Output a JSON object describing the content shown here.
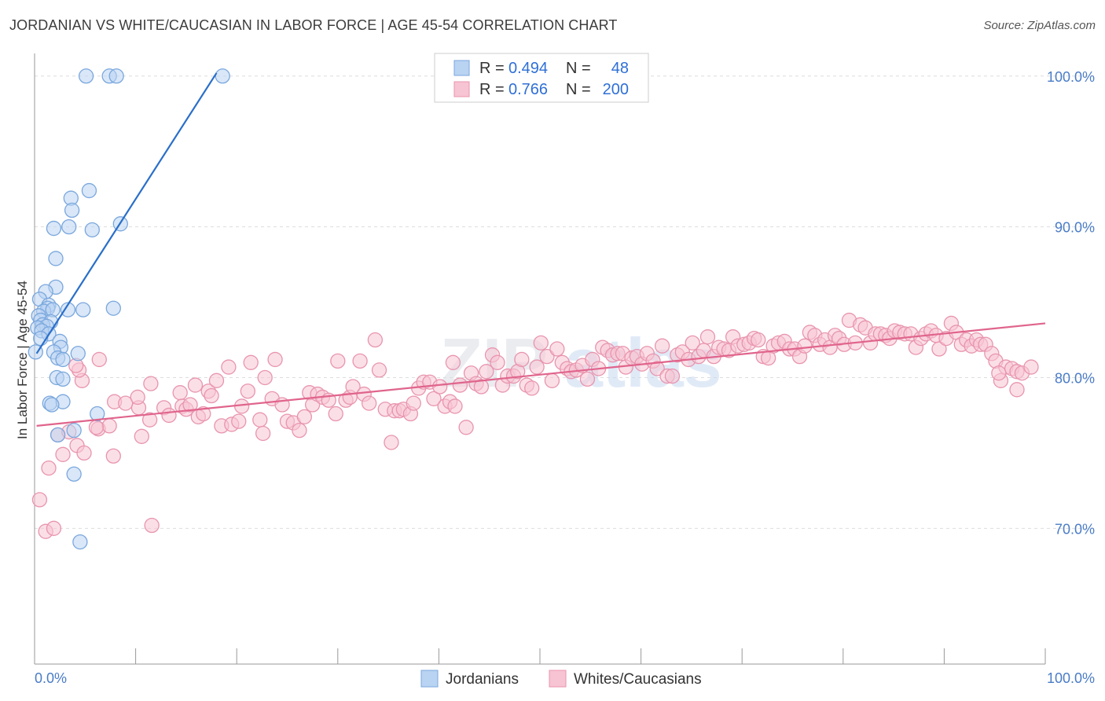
{
  "header": {
    "title": "JORDANIAN VS WHITE/CAUCASIAN IN LABOR FORCE | AGE 45-54 CORRELATION CHART",
    "source": "Source: ZipAtlas.com"
  },
  "watermark": {
    "part1": "ZIP",
    "part2": "atlas"
  },
  "colors": {
    "blue_fill": "#b9d3f2",
    "blue_stroke": "#7aa7dd",
    "blue_line": "#2a6fc9",
    "pink_fill": "#f7c4d3",
    "pink_stroke": "#e895ae",
    "pink_line": "#e0648c",
    "tick": "#4a7cc7",
    "grid": "#dddddd"
  },
  "chart_data": {
    "type": "scatter",
    "title": "JORDANIAN VS WHITE/CAUCASIAN IN LABOR FORCE | AGE 45-54 CORRELATION CHART",
    "xlabel": "",
    "ylabel": "In Labor Force | Age 45-54",
    "xlim": [
      0,
      100
    ],
    "ylim": [
      61,
      101.5
    ],
    "x_tick_labels": [
      "0.0%",
      "100.0%"
    ],
    "y_ticks": [
      70,
      80,
      90,
      100
    ],
    "y_tick_labels": [
      "70.0%",
      "80.0%",
      "90.0%",
      "100.0%"
    ],
    "legend": [
      {
        "r_label": "R = ",
        "r_value": "0.494",
        "n_label": "N = ",
        "n_value": "48"
      },
      {
        "r_label": "R = ",
        "r_value": "0.766",
        "n_label": "N = ",
        "n_value": "200"
      }
    ],
    "series": [
      {
        "name": "Jordanians",
        "trend": {
          "x": [
            0.2,
            18.0
          ],
          "y": [
            81.6,
            100.2
          ]
        },
        "points": [
          [
            5.1,
            100
          ],
          [
            7.4,
            100
          ],
          [
            8.1,
            100
          ],
          [
            18.6,
            100
          ],
          [
            5.4,
            92.4
          ],
          [
            3.6,
            91.9
          ],
          [
            3.7,
            91.1
          ],
          [
            8.5,
            90.2
          ],
          [
            1.9,
            89.9
          ],
          [
            3.4,
            90
          ],
          [
            5.7,
            89.8
          ],
          [
            2.1,
            87.9
          ],
          [
            2.1,
            86
          ],
          [
            1.1,
            85.7
          ],
          [
            0.5,
            85.2
          ],
          [
            1.4,
            84.8
          ],
          [
            1.3,
            84.6
          ],
          [
            0.9,
            84.4
          ],
          [
            4.8,
            84.5
          ],
          [
            7.8,
            84.6
          ],
          [
            3.3,
            84.5
          ],
          [
            1.8,
            84.5
          ],
          [
            0.4,
            84.1
          ],
          [
            0.6,
            83.8
          ],
          [
            1.6,
            83.7
          ],
          [
            0.8,
            83.5
          ],
          [
            1.2,
            83.4
          ],
          [
            0.3,
            83.3
          ],
          [
            0.7,
            83.1
          ],
          [
            1.4,
            82.9
          ],
          [
            0.6,
            82.6
          ],
          [
            2.5,
            82.4
          ],
          [
            2.6,
            82
          ],
          [
            1.9,
            81.7
          ],
          [
            4.3,
            81.6
          ],
          [
            2.3,
            81.3
          ],
          [
            2.8,
            81.2
          ],
          [
            0.1,
            81.7
          ],
          [
            2.2,
            80
          ],
          [
            2.8,
            79.9
          ],
          [
            2.8,
            78.4
          ],
          [
            1.5,
            78.3
          ],
          [
            1.7,
            78.2
          ],
          [
            6.2,
            77.6
          ],
          [
            2.3,
            76.2
          ],
          [
            3.9,
            76.5
          ],
          [
            3.9,
            73.6
          ],
          [
            4.5,
            69.1
          ]
        ]
      },
      {
        "name": "Whites/Caucasians",
        "trend": {
          "x": [
            0.2,
            100
          ],
          "y": [
            76.8,
            83.6
          ]
        },
        "points": [
          [
            0.5,
            71.9
          ],
          [
            1.1,
            69.8
          ],
          [
            1.9,
            70
          ],
          [
            1.4,
            74
          ],
          [
            2.8,
            74.9
          ],
          [
            2.3,
            76.2
          ],
          [
            3.4,
            76.4
          ],
          [
            4.2,
            75.5
          ],
          [
            4.9,
            75
          ],
          [
            6.3,
            76.6
          ],
          [
            7.4,
            76.8
          ],
          [
            7.8,
            74.8
          ],
          [
            6.1,
            76.7
          ],
          [
            11.6,
            70.2
          ],
          [
            4.7,
            79.8
          ],
          [
            4.4,
            80.5
          ],
          [
            4.1,
            80.8
          ],
          [
            6.4,
            81.2
          ],
          [
            7.9,
            78.4
          ],
          [
            9,
            78.3
          ],
          [
            10.3,
            78
          ],
          [
            10.2,
            78.7
          ],
          [
            10.6,
            76.1
          ],
          [
            11.4,
            77.2
          ],
          [
            11.5,
            79.6
          ],
          [
            12.8,
            78
          ],
          [
            13.3,
            77.5
          ],
          [
            14.4,
            79
          ],
          [
            14.6,
            78.1
          ],
          [
            15,
            77.9
          ],
          [
            15.4,
            78.2
          ],
          [
            15.9,
            79.5
          ],
          [
            16.2,
            77.4
          ],
          [
            16.7,
            77.6
          ],
          [
            17.2,
            79.1
          ],
          [
            17.5,
            78.8
          ],
          [
            18,
            79.8
          ],
          [
            18.5,
            76.8
          ],
          [
            19.2,
            80.7
          ],
          [
            19.5,
            76.9
          ],
          [
            20.2,
            77.1
          ],
          [
            20.5,
            78.1
          ],
          [
            21.1,
            79.1
          ],
          [
            21.4,
            81
          ],
          [
            22.3,
            77.2
          ],
          [
            22.6,
            76.3
          ],
          [
            22.8,
            80
          ],
          [
            23.8,
            81.2
          ],
          [
            23.5,
            78.6
          ],
          [
            24.5,
            78.2
          ],
          [
            25,
            77.1
          ],
          [
            25.6,
            77
          ],
          [
            26.2,
            76.5
          ],
          [
            26.7,
            77.4
          ],
          [
            27.2,
            79
          ],
          [
            27.5,
            78.2
          ],
          [
            28,
            78.9
          ],
          [
            28.5,
            78.7
          ],
          [
            29.1,
            78.5
          ],
          [
            29.8,
            77.6
          ],
          [
            30,
            81.1
          ],
          [
            30.8,
            78.5
          ],
          [
            31.2,
            78.7
          ],
          [
            31.5,
            79.4
          ],
          [
            32.2,
            81.1
          ],
          [
            32.6,
            78.9
          ],
          [
            33.1,
            78.3
          ],
          [
            33.7,
            82.5
          ],
          [
            34.1,
            80.5
          ],
          [
            34.7,
            77.9
          ],
          [
            35.3,
            75.7
          ],
          [
            35.6,
            77.8
          ],
          [
            36.1,
            77.8
          ],
          [
            36.5,
            77.9
          ],
          [
            37.2,
            77.6
          ],
          [
            37.5,
            78.3
          ],
          [
            38,
            79.3
          ],
          [
            38.5,
            79.7
          ],
          [
            39.1,
            79.7
          ],
          [
            39.5,
            78.6
          ],
          [
            40.1,
            79.4
          ],
          [
            40.6,
            78.1
          ],
          [
            41.1,
            78.4
          ],
          [
            41.6,
            78.1
          ],
          [
            41.4,
            81
          ],
          [
            42.1,
            79.5
          ],
          [
            42.7,
            76.7
          ],
          [
            43.2,
            80.3
          ],
          [
            43.7,
            79.6
          ],
          [
            44.2,
            79.4
          ],
          [
            44.7,
            80.4
          ],
          [
            45.3,
            81.5
          ],
          [
            45.8,
            81
          ],
          [
            46.3,
            79.5
          ],
          [
            46.8,
            80.1
          ],
          [
            47.4,
            80.1
          ],
          [
            47.8,
            80.4
          ],
          [
            48.2,
            81.2
          ],
          [
            48.7,
            79.5
          ],
          [
            49.2,
            79.3
          ],
          [
            49.7,
            80.7
          ],
          [
            50.1,
            82.3
          ],
          [
            50.7,
            81.4
          ],
          [
            51.2,
            79.8
          ],
          [
            51.7,
            81.9
          ],
          [
            52.2,
            81
          ],
          [
            52.7,
            80.6
          ],
          [
            53.1,
            80.4
          ],
          [
            53.6,
            80.5
          ],
          [
            54.2,
            80.8
          ],
          [
            54.7,
            79.9
          ],
          [
            55.2,
            81.2
          ],
          [
            55.8,
            80.6
          ],
          [
            56.2,
            82
          ],
          [
            56.7,
            81.8
          ],
          [
            57.2,
            81.5
          ],
          [
            57.7,
            81.6
          ],
          [
            58.2,
            81.6
          ],
          [
            58.5,
            80.7
          ],
          [
            59.1,
            81.3
          ],
          [
            59.6,
            81.4
          ],
          [
            60.1,
            80.9
          ],
          [
            60.6,
            81.6
          ],
          [
            61.2,
            81.1
          ],
          [
            61.6,
            80.6
          ],
          [
            62.1,
            82.1
          ],
          [
            62.6,
            80.1
          ],
          [
            63.1,
            80.1
          ],
          [
            63.6,
            81.5
          ],
          [
            64.1,
            81.7
          ],
          [
            64.7,
            81.2
          ],
          [
            65.1,
            82.3
          ],
          [
            65.7,
            81.4
          ],
          [
            66.2,
            81.8
          ],
          [
            66.6,
            82.7
          ],
          [
            67.2,
            81.4
          ],
          [
            67.7,
            82
          ],
          [
            68.2,
            81.9
          ],
          [
            68.7,
            81.8
          ],
          [
            69.1,
            82.7
          ],
          [
            69.6,
            82.1
          ],
          [
            70.2,
            82.2
          ],
          [
            70.7,
            82.3
          ],
          [
            71.2,
            82.6
          ],
          [
            71.6,
            82.5
          ],
          [
            72.1,
            81.4
          ],
          [
            72.6,
            81.3
          ],
          [
            73.1,
            82.1
          ],
          [
            73.6,
            82.3
          ],
          [
            74.2,
            82.4
          ],
          [
            74.7,
            81.9
          ],
          [
            75.2,
            81.9
          ],
          [
            75.7,
            81.4
          ],
          [
            76.2,
            82.1
          ],
          [
            76.7,
            83
          ],
          [
            77.2,
            82.8
          ],
          [
            77.7,
            82.2
          ],
          [
            78.2,
            82.5
          ],
          [
            78.7,
            82
          ],
          [
            79.2,
            82.8
          ],
          [
            79.6,
            82.6
          ],
          [
            80.1,
            82.2
          ],
          [
            80.6,
            83.8
          ],
          [
            81.2,
            82.3
          ],
          [
            81.7,
            83.5
          ],
          [
            82.2,
            83.3
          ],
          [
            82.7,
            82.3
          ],
          [
            83.2,
            82.9
          ],
          [
            83.7,
            82.9
          ],
          [
            84.2,
            82.8
          ],
          [
            84.6,
            82.6
          ],
          [
            85.1,
            83.1
          ],
          [
            85.6,
            83
          ],
          [
            86.1,
            82.9
          ],
          [
            86.7,
            82.9
          ],
          [
            87.2,
            82
          ],
          [
            87.7,
            82.6
          ],
          [
            88.2,
            82.9
          ],
          [
            88.7,
            83.1
          ],
          [
            89.2,
            82.8
          ],
          [
            89.5,
            81.9
          ],
          [
            90.2,
            82.6
          ],
          [
            90.7,
            83.6
          ],
          [
            91.2,
            83
          ],
          [
            91.7,
            82.2
          ],
          [
            92.2,
            82.5
          ],
          [
            92.7,
            82.1
          ],
          [
            93.2,
            82.5
          ],
          [
            93.6,
            82.2
          ],
          [
            94.1,
            82.2
          ],
          [
            94.7,
            81.6
          ],
          [
            95.1,
            81.1
          ],
          [
            95.6,
            79.8
          ],
          [
            96.1,
            80.7
          ],
          [
            96.7,
            80.6
          ],
          [
            97.2,
            80.4
          ],
          [
            97.7,
            80.3
          ],
          [
            97.2,
            79.2
          ],
          [
            98.6,
            80.7
          ],
          [
            95.4,
            80.3
          ]
        ]
      }
    ]
  },
  "bottom_legend": {
    "item1": "Jordanians",
    "item2": "Whites/Caucasians"
  }
}
